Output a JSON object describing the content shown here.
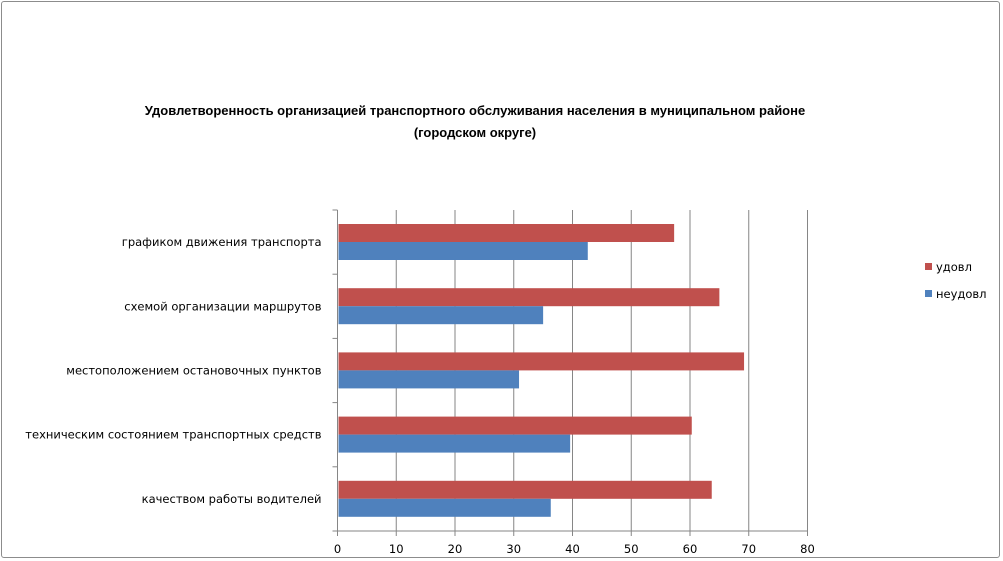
{
  "chart_data": {
    "type": "bar",
    "orientation": "horizontal",
    "title": "Удовлетворенность организацией транспортного обслуживания населения в муниципальном районе (городском округе)",
    "title_lines": [
      "Удовлетворенность организацией транспортного обслуживания населения в муниципальном районе",
      "(городском округе)"
    ],
    "categories": [
      "графиком движения транспорта",
      "схемой организации маршрутов",
      "местоположением остановочных пунктов",
      "техническим состоянием транспортных средств",
      "качеством работы водителей"
    ],
    "series": [
      {
        "name": "удовл",
        "color": "#c0504d",
        "values": [
          57.3,
          65.0,
          69.2,
          60.3,
          63.7
        ]
      },
      {
        "name": "неудовл",
        "color": "#4f81bd",
        "values": [
          42.6,
          35.0,
          30.9,
          39.6,
          36.3
        ]
      }
    ],
    "xlim": [
      0,
      80
    ],
    "xticks": [
      0,
      10,
      20,
      30,
      40,
      50,
      60,
      70,
      80
    ],
    "grid": "vertical",
    "legend": "right"
  }
}
